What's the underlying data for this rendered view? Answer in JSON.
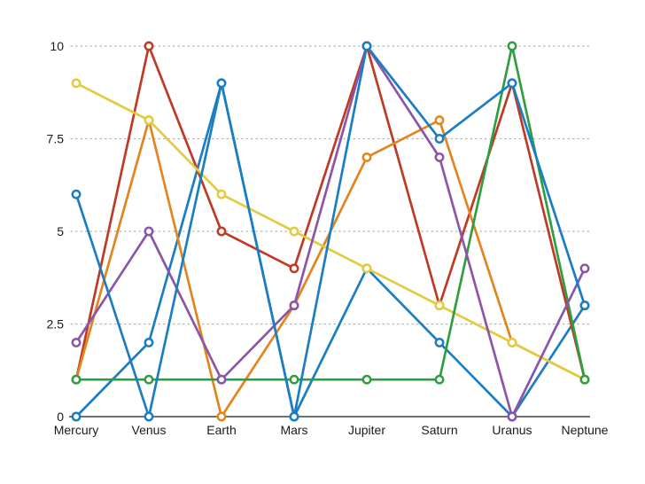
{
  "chart_data": {
    "type": "line",
    "title": "",
    "xlabel": "",
    "ylabel": "",
    "legend": "none",
    "categories": [
      "Mercury",
      "Venus",
      "Earth",
      "Mars",
      "Jupiter",
      "Saturn",
      "Uranus",
      "Neptune"
    ],
    "series": [
      {
        "name": "blue-secondary",
        "color": "#1b7ec2",
        "values": [
          0,
          2,
          9,
          0,
          4,
          2,
          0,
          3
        ]
      },
      {
        "name": "red",
        "color": "#bf3a24",
        "values": [
          1,
          10,
          5,
          4,
          10,
          3,
          9,
          1
        ]
      },
      {
        "name": "orange",
        "color": "#e2851e",
        "values": [
          1,
          8,
          0,
          3,
          7,
          8,
          2,
          1
        ]
      },
      {
        "name": "yellow",
        "color": "#e2ca41",
        "values": [
          9,
          8,
          6,
          5,
          4,
          3,
          2,
          1
        ]
      },
      {
        "name": "green",
        "color": "#2f9e41",
        "values": [
          1,
          1,
          1,
          1,
          1,
          1,
          10,
          1
        ]
      },
      {
        "name": "purple",
        "color": "#8b56a7",
        "values": [
          2,
          5,
          1,
          3,
          10,
          7,
          0,
          4
        ]
      },
      {
        "name": "blue-primary",
        "color": "#1b7ec2",
        "values": [
          6,
          0,
          9,
          0,
          10,
          7.5,
          9,
          3
        ]
      }
    ],
    "ylim": [
      0,
      10
    ],
    "yticks": [
      {
        "value": 0,
        "label": "0"
      },
      {
        "value": 2.5,
        "label": "2.5"
      },
      {
        "value": 5,
        "label": "5"
      },
      {
        "value": 7.5,
        "label": "7.5"
      },
      {
        "value": 10,
        "label": "10"
      }
    ],
    "grid": "horizontal dotted lines at 2.5, 5, 7.5, 10; solid baseline at 0",
    "marker": "open-circle",
    "style": {
      "background": "#ffffff",
      "grid_color": "#b5b5b5",
      "axis_color": "#1a1a1a",
      "text_color": "#1a1a1a",
      "marker_fill": "#ffffff"
    }
  }
}
